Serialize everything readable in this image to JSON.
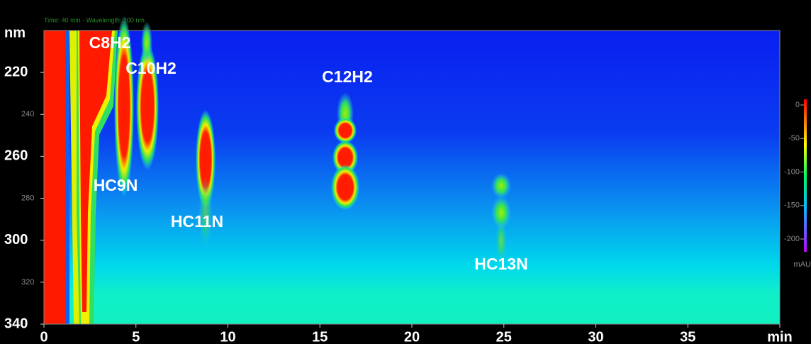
{
  "chart_data": {
    "type": "heatmap",
    "title": "Time: 40 min - Wavelength: 200 nm",
    "y_label": "nm",
    "xlim": [
      0,
      40
    ],
    "xticks": [
      0,
      5,
      10,
      15,
      20,
      25,
      30,
      35,
      {
        "value": 40,
        "label": "min"
      }
    ],
    "ylim": [
      200,
      340
    ],
    "yticks": [
      220,
      240,
      260,
      280,
      300,
      320,
      340
    ],
    "annotations": [
      "C8H2",
      "C10H2",
      "C12H2",
      "HC9N",
      "HC11N",
      "HC13N"
    ],
    "colorbar": {
      "ticks": [
        0,
        -50,
        -100,
        -150,
        -200
      ],
      "label": "mAU"
    }
  }
}
